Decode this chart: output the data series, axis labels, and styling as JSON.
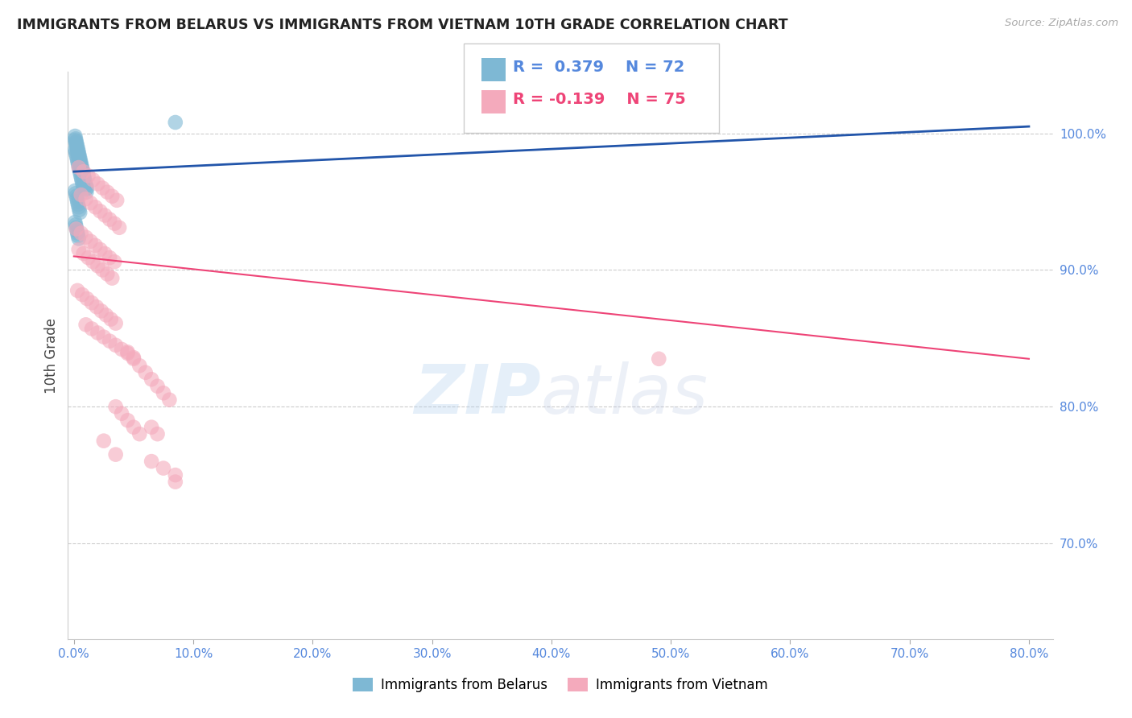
{
  "title": "IMMIGRANTS FROM BELARUS VS IMMIGRANTS FROM VIETNAM 10TH GRADE CORRELATION CHART",
  "source": "Source: ZipAtlas.com",
  "xlim": [
    -0.5,
    82.0
  ],
  "ylim": [
    63.0,
    104.5
  ],
  "x_ticks": [
    0.0,
    10.0,
    20.0,
    30.0,
    40.0,
    50.0,
    60.0,
    70.0,
    80.0
  ],
  "y_ticks": [
    70.0,
    80.0,
    90.0,
    100.0
  ],
  "color_belarus": "#7EB8D4",
  "color_vietnam": "#F4AABC",
  "color_trend_belarus": "#2255AA",
  "color_trend_vietnam": "#EE4477",
  "color_tick_labels": "#5588DD",
  "color_grid": "#CCCCCC",
  "color_title": "#222222",
  "belarus_label": "Immigrants from Belarus",
  "vietnam_label": "Immigrants from Vietnam",
  "belarus_x": [
    0.1,
    0.15,
    0.2,
    0.25,
    0.3,
    0.35,
    0.4,
    0.45,
    0.5,
    0.55,
    0.6,
    0.65,
    0.7,
    0.75,
    0.8,
    0.85,
    0.9,
    0.95,
    1.0,
    1.1,
    0.1,
    0.15,
    0.2,
    0.25,
    0.3,
    0.35,
    0.4,
    0.45,
    0.5,
    0.55,
    0.6,
    0.65,
    0.7,
    0.75,
    0.8,
    0.85,
    0.9,
    0.95,
    1.0,
    1.05,
    0.1,
    0.15,
    0.2,
    0.25,
    0.3,
    0.35,
    0.4,
    0.45,
    0.5,
    0.55,
    0.6,
    0.65,
    0.7,
    0.75,
    0.8,
    0.1,
    0.15,
    0.2,
    0.25,
    0.3,
    0.35,
    0.4,
    0.45,
    0.5,
    0.1,
    0.15,
    0.2,
    0.25,
    0.3,
    0.35,
    0.4,
    8.5
  ],
  "belarus_y": [
    99.8,
    99.6,
    99.4,
    99.2,
    99.0,
    98.8,
    98.6,
    98.4,
    98.2,
    98.0,
    97.8,
    97.6,
    97.4,
    97.2,
    97.0,
    96.8,
    96.6,
    96.4,
    96.2,
    96.0,
    99.5,
    99.3,
    99.1,
    98.9,
    98.7,
    98.5,
    98.3,
    98.1,
    97.9,
    97.7,
    97.5,
    97.3,
    97.1,
    96.9,
    96.7,
    96.5,
    96.3,
    96.1,
    95.9,
    95.7,
    98.8,
    98.6,
    98.4,
    98.2,
    98.0,
    97.8,
    97.6,
    97.4,
    97.2,
    97.0,
    96.8,
    96.6,
    96.4,
    96.2,
    96.0,
    95.8,
    95.6,
    95.4,
    95.2,
    95.0,
    94.8,
    94.6,
    94.4,
    94.2,
    93.5,
    93.3,
    93.1,
    92.9,
    92.7,
    92.5,
    92.3,
    100.8
  ],
  "vietnam_x": [
    0.4,
    0.8,
    1.2,
    1.6,
    2.0,
    2.4,
    2.8,
    3.2,
    3.6,
    0.6,
    1.0,
    1.4,
    1.8,
    2.2,
    2.6,
    3.0,
    3.4,
    3.8,
    0.2,
    0.6,
    1.0,
    1.4,
    1.8,
    2.2,
    2.6,
    3.0,
    3.4,
    0.4,
    0.8,
    1.2,
    1.6,
    2.0,
    2.4,
    2.8,
    3.2,
    0.3,
    0.7,
    1.1,
    1.5,
    1.9,
    2.3,
    2.7,
    3.1,
    3.5,
    1.0,
    1.5,
    2.0,
    2.5,
    3.0,
    3.5,
    4.0,
    4.5,
    5.0,
    4.5,
    5.0,
    5.5,
    6.0,
    6.5,
    7.0,
    7.5,
    8.0,
    3.5,
    4.0,
    4.5,
    5.0,
    5.5,
    6.5,
    7.0,
    2.5,
    3.5,
    6.5,
    7.5,
    8.5,
    8.5,
    49.0
  ],
  "vietnam_y": [
    97.5,
    97.2,
    96.9,
    96.6,
    96.3,
    96.0,
    95.7,
    95.4,
    95.1,
    95.5,
    95.2,
    94.9,
    94.6,
    94.3,
    94.0,
    93.7,
    93.4,
    93.1,
    93.0,
    92.7,
    92.4,
    92.1,
    91.8,
    91.5,
    91.2,
    90.9,
    90.6,
    91.5,
    91.2,
    90.9,
    90.6,
    90.3,
    90.0,
    89.7,
    89.4,
    88.5,
    88.2,
    87.9,
    87.6,
    87.3,
    87.0,
    86.7,
    86.4,
    86.1,
    86.0,
    85.7,
    85.4,
    85.1,
    84.8,
    84.5,
    84.2,
    83.9,
    83.6,
    84.0,
    83.5,
    83.0,
    82.5,
    82.0,
    81.5,
    81.0,
    80.5,
    80.0,
    79.5,
    79.0,
    78.5,
    78.0,
    78.5,
    78.0,
    77.5,
    76.5,
    76.0,
    75.5,
    75.0,
    74.5,
    83.5
  ],
  "trend_belarus_x0": 0.0,
  "trend_belarus_x1": 80.0,
  "trend_belarus_y0": 97.2,
  "trend_belarus_y1": 100.5,
  "trend_vietnam_x0": 0.0,
  "trend_vietnam_x1": 80.0,
  "trend_vietnam_y0": 91.0,
  "trend_vietnam_y1": 83.5
}
